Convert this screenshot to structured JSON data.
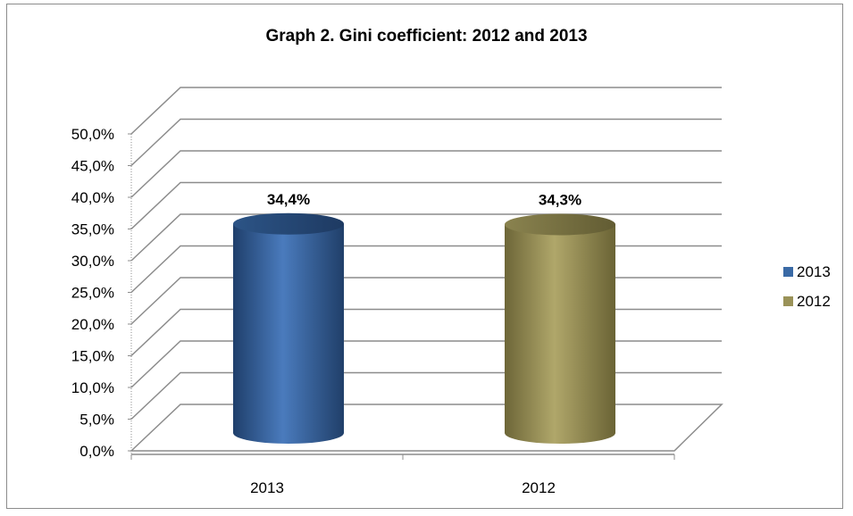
{
  "chart_data": {
    "type": "bar",
    "title": "Graph 2. Gini coefficient: 2012 and 2013",
    "categories": [
      "2013",
      "2012"
    ],
    "series": [
      {
        "name": "2013",
        "category": "2013",
        "value": 34.4,
        "label": "34,4%",
        "color": "#3a6aa6"
      },
      {
        "name": "2012",
        "category": "2012",
        "value": 34.3,
        "label": "34,3%",
        "color": "#9a9258"
      }
    ],
    "y_ticks": [
      "0,0%",
      "5,0%",
      "10,0%",
      "15,0%",
      "20,0%",
      "25,0%",
      "30,0%",
      "35,0%",
      "40,0%",
      "45,0%",
      "50,0%"
    ],
    "ylim": [
      0,
      50
    ],
    "xlabel": "",
    "ylabel": "",
    "legend": "right",
    "grid": true,
    "style": "3d-cylinder"
  }
}
